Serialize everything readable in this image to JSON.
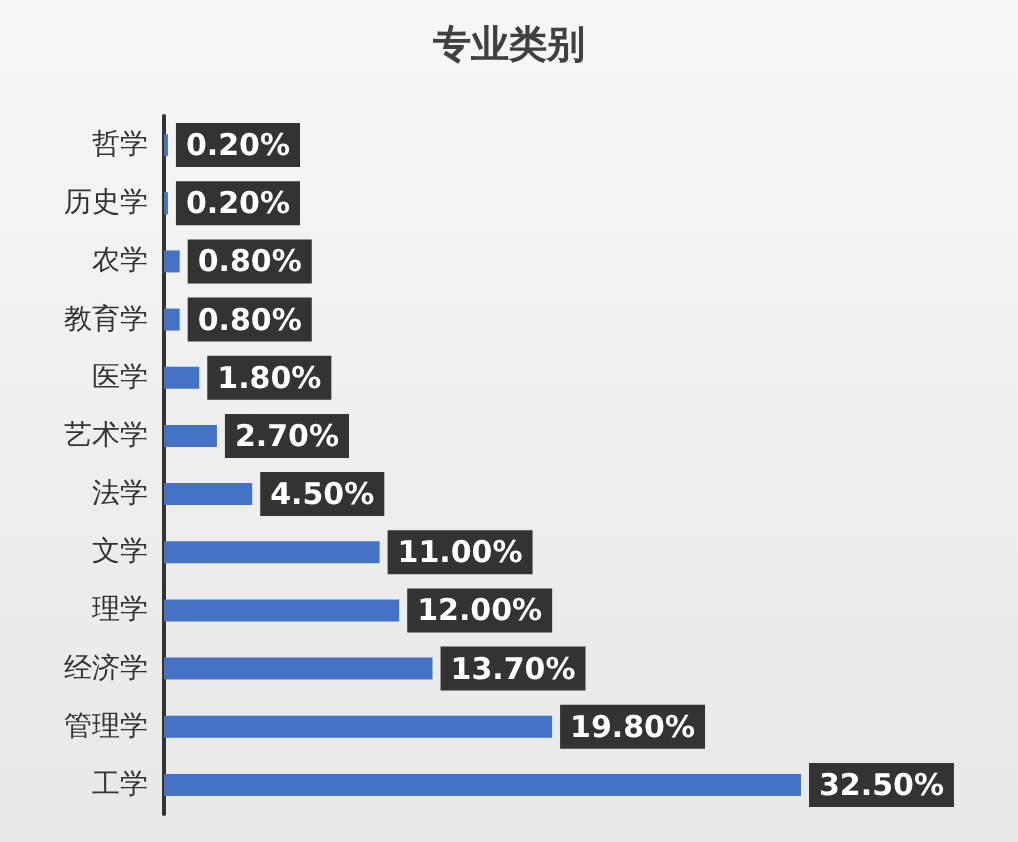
{
  "chart_data": {
    "type": "bar",
    "orientation": "horizontal",
    "title": "专业类别",
    "categories": [
      "哲学",
      "历史学",
      "农学",
      "教育学",
      "医学",
      "艺术学",
      "法学",
      "文学",
      "理学",
      "经济学",
      "管理学",
      "工学"
    ],
    "values": [
      0.2,
      0.2,
      0.8,
      0.8,
      1.8,
      2.7,
      4.5,
      11,
      12,
      13.7,
      19.8,
      32.5
    ],
    "value_labels": [
      "0.20%",
      "0.20%",
      "0.80%",
      "0.80%",
      "1.80%",
      "2.70%",
      "4.50%",
      "11.00%",
      "12.00%",
      "13.70%",
      "19.80%",
      "32.50%"
    ],
    "color": "#4472c4"
  }
}
